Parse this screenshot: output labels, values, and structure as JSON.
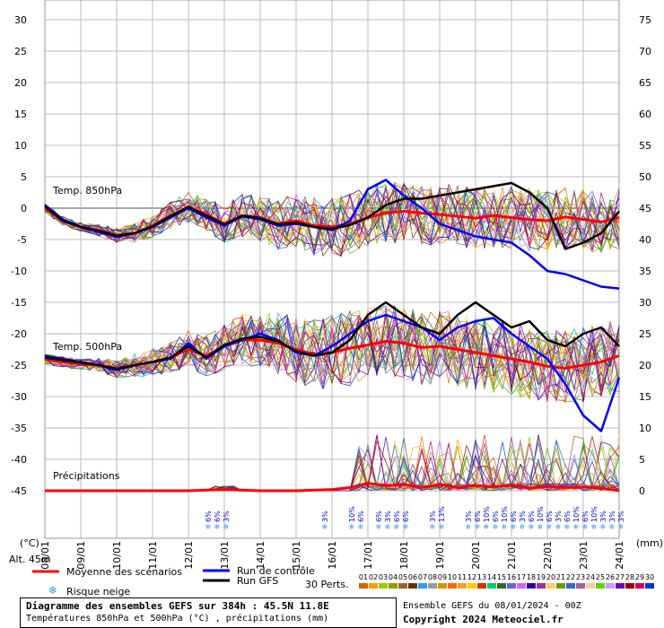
{
  "chart_data": {
    "type": "line",
    "title": "Diagramme des ensembles GEFS sur 384h : 45.5N 11.8E",
    "subtitle": "Températures 850hPa et 500hPa (°C) , précipitations (mm)",
    "left_axis": {
      "label": "(°C)",
      "ticks": [
        30,
        25,
        20,
        15,
        10,
        5,
        0,
        -5,
        -10,
        -15,
        -20,
        -25,
        -30,
        -35,
        -40,
        -45
      ],
      "range": [
        -45,
        30
      ]
    },
    "right_axis": {
      "label": "(mm)",
      "ticks": [
        75,
        70,
        65,
        60,
        55,
        50,
        45,
        40,
        35,
        30,
        25,
        20,
        15,
        10,
        5,
        0
      ],
      "range": [
        0,
        75
      ]
    },
    "x_ticks": [
      "08/01",
      "09/01",
      "10/01",
      "11/01",
      "12/01",
      "13/01",
      "14/01",
      "15/01",
      "16/01",
      "17/01",
      "18/01",
      "19/01",
      "20/01",
      "21/01",
      "22/01",
      "23/01",
      "24/01"
    ],
    "altitude_label": "Alt. 45m",
    "panel_labels": [
      "Temp. 850hPa",
      "Temp. 500hPa",
      "Précipitations"
    ],
    "legend": [
      {
        "name": "Moyenne des scénarios",
        "color": "#ff0000"
      },
      {
        "name": "Run de contrôle",
        "color": "#0000ff"
      },
      {
        "name": "Run GFS",
        "color": "#000000"
      },
      {
        "name": "Risque neige",
        "color": "#3399ff"
      }
    ],
    "members_label": "30 Perts.",
    "member_numbers": [
      "01",
      "02",
      "03",
      "04",
      "05",
      "06",
      "07",
      "08",
      "09",
      "10",
      "11",
      "12",
      "13",
      "14",
      "15",
      "16",
      "17",
      "18",
      "19",
      "20",
      "21",
      "22",
      "23",
      "24",
      "25",
      "26",
      "27",
      "28",
      "29",
      "30"
    ],
    "member_colors": [
      "#cc6600",
      "#ff9900",
      "#99cc00",
      "#999900",
      "#996633",
      "#663300",
      "#3399ff",
      "#999999",
      "#cc9900",
      "#ff6600",
      "#ff9933",
      "#ffcc00",
      "#cc3300",
      "#00cc66",
      "#336633",
      "#6666cc",
      "#cc66ff",
      "#330099",
      "#993399",
      "#ffcc66",
      "#669900",
      "#3366cc",
      "#996699",
      "#ffcc99",
      "#66cc00",
      "#cc99ff",
      "#6600cc",
      "#990000",
      "#cc0066",
      "#0033cc"
    ],
    "snow_risk": [
      {
        "x": 12.75,
        "pct": "6%"
      },
      {
        "x": 13.0,
        "pct": "6%"
      },
      {
        "x": 13.25,
        "pct": "3%"
      },
      {
        "x": 16.0,
        "pct": "3%"
      },
      {
        "x": 16.75,
        "pct": "10%"
      },
      {
        "x": 17.0,
        "pct": "6%"
      },
      {
        "x": 17.5,
        "pct": "6%"
      },
      {
        "x": 17.75,
        "pct": "3%"
      },
      {
        "x": 18.0,
        "pct": "6%"
      },
      {
        "x": 18.25,
        "pct": "6%"
      },
      {
        "x": 19.0,
        "pct": "3%"
      },
      {
        "x": 19.25,
        "pct": "13%"
      },
      {
        "x": 20.0,
        "pct": "3%"
      },
      {
        "x": 20.25,
        "pct": "6%"
      },
      {
        "x": 20.5,
        "pct": "10%"
      },
      {
        "x": 20.75,
        "pct": "6%"
      },
      {
        "x": 21.0,
        "pct": "10%"
      },
      {
        "x": 21.25,
        "pct": "6%"
      },
      {
        "x": 21.5,
        "pct": "3%"
      },
      {
        "x": 21.75,
        "pct": "6%"
      },
      {
        "x": 22.0,
        "pct": "10%"
      },
      {
        "x": 22.25,
        "pct": "6%"
      },
      {
        "x": 22.5,
        "pct": "3%"
      },
      {
        "x": 22.75,
        "pct": "6%"
      },
      {
        "x": 23.0,
        "pct": "10%"
      },
      {
        "x": 23.25,
        "pct": "6%"
      },
      {
        "x": 23.5,
        "pct": "10%"
      },
      {
        "x": 23.75,
        "pct": "3%"
      },
      {
        "x": 24.0,
        "pct": "3%"
      },
      {
        "x": 24.25,
        "pct": "3%"
      }
    ],
    "series": [
      {
        "name": "Moyenne des scénarios",
        "panel": "Temp. 850hPa",
        "color": "#ff0000",
        "x": [
          8,
          8.5,
          9,
          9.5,
          10,
          10.5,
          11,
          11.5,
          12,
          12.5,
          13,
          13.5,
          14,
          14.5,
          15,
          15.5,
          16,
          16.5,
          17,
          17.5,
          18,
          18.5,
          19,
          19.5,
          20,
          20.5,
          21,
          21.5,
          22,
          22.5,
          23,
          23.5,
          24
        ],
        "values": [
          0,
          -2,
          -3,
          -3.5,
          -4.3,
          -4,
          -2.8,
          -1.2,
          0.2,
          -1,
          -2.5,
          -1.2,
          -1.5,
          -2.5,
          -2,
          -2.8,
          -3,
          -2.5,
          -1.5,
          -0.8,
          -0.5,
          -0.8,
          -1,
          -1.3,
          -1.6,
          -1.2,
          -1.5,
          -1.8,
          -2,
          -1.4,
          -1.8,
          -2.2,
          -1.5
        ]
      },
      {
        "name": "Run de contrôle",
        "panel": "Temp. 850hPa",
        "color": "#0000ff",
        "x": [
          8,
          8.5,
          9,
          9.5,
          10,
          10.5,
          11,
          11.5,
          12,
          12.5,
          13,
          13.5,
          14,
          14.5,
          15,
          15.5,
          16,
          16.5,
          17,
          17.5,
          18,
          18.5,
          19,
          19.5,
          20,
          20.5,
          21,
          21.5,
          22,
          22.5,
          23,
          23.5,
          24
        ],
        "values": [
          0.5,
          -1.8,
          -3,
          -3.8,
          -4.6,
          -4,
          -3,
          -1.5,
          0,
          -1.5,
          -2.8,
          -1.3,
          -1.8,
          -2.8,
          -2.5,
          -3,
          -3.5,
          -2,
          3,
          4.5,
          2,
          0,
          -2.5,
          -3.5,
          -4.5,
          -5,
          -5.5,
          -7.5,
          -10,
          -10.5,
          -11.5,
          -12.5,
          -12.8
        ]
      },
      {
        "name": "Run GFS",
        "panel": "Temp. 850hPa",
        "color": "#000000",
        "x": [
          8,
          8.5,
          9,
          9.5,
          10,
          10.5,
          11,
          11.5,
          12,
          12.5,
          13,
          13.5,
          14,
          14.5,
          15,
          15.5,
          16,
          16.5,
          17,
          17.5,
          18,
          18.5,
          19,
          19.5,
          20,
          20.5,
          21,
          21.5,
          22,
          22.5,
          23,
          23.5,
          24
        ],
        "values": [
          0.3,
          -2,
          -3,
          -3.6,
          -4.4,
          -4,
          -2.9,
          -1.3,
          0.2,
          -1.2,
          -2.6,
          -1.2,
          -1.6,
          -2.6,
          -2.3,
          -3,
          -3.3,
          -2.7,
          -1.5,
          0.5,
          1.5,
          1.5,
          2,
          2.5,
          3,
          3.5,
          4,
          2.5,
          0,
          -6.5,
          -5.5,
          -4,
          -0.5
        ]
      },
      {
        "name": "Moyenne des scénarios",
        "panel": "Temp. 500hPa",
        "color": "#ff0000",
        "x": [
          8,
          8.5,
          9,
          9.5,
          10,
          10.5,
          11,
          11.5,
          12,
          12.5,
          13,
          13.5,
          14,
          14.5,
          15,
          15.5,
          16,
          16.5,
          17,
          17.5,
          18,
          18.5,
          19,
          19.5,
          20,
          20.5,
          21,
          21.5,
          22,
          22.5,
          23,
          23.5,
          24
        ],
        "values": [
          -24,
          -24.5,
          -24.8,
          -25,
          -25.5,
          -25,
          -24.5,
          -23.8,
          -22.5,
          -23.5,
          -22,
          -21,
          -21,
          -21.5,
          -22.5,
          -23.3,
          -23,
          -22.3,
          -21.8,
          -21.2,
          -21.5,
          -22.2,
          -22,
          -22.5,
          -23,
          -23.5,
          -24,
          -24.5,
          -25.2,
          -25.5,
          -25,
          -24.5,
          -23.5
        ]
      },
      {
        "name": "Run de contrôle",
        "panel": "Temp. 500hPa",
        "color": "#0000ff",
        "x": [
          8,
          8.5,
          9,
          9.5,
          10,
          10.5,
          11,
          11.5,
          12,
          12.5,
          13,
          13.5,
          14,
          14.5,
          15,
          15.5,
          16,
          16.5,
          17,
          17.5,
          18,
          18.5,
          19,
          19.5,
          20,
          20.5,
          21,
          21.5,
          22,
          22.5,
          23,
          23.5,
          24
        ],
        "values": [
          -23.5,
          -24,
          -24.5,
          -25,
          -25.8,
          -25,
          -24.5,
          -24,
          -21.5,
          -24,
          -22,
          -21,
          -20,
          -21,
          -23,
          -23.5,
          -22,
          -20,
          -18,
          -17,
          -18,
          -19,
          -21,
          -19,
          -18,
          -17.5,
          -20,
          -22,
          -24,
          -28,
          -33,
          -35.5,
          -27
        ]
      },
      {
        "name": "Run GFS",
        "panel": "Temp. 500hPa",
        "color": "#000000",
        "x": [
          8,
          8.5,
          9,
          9.5,
          10,
          10.5,
          11,
          11.5,
          12,
          12.5,
          13,
          13.5,
          14,
          14.5,
          15,
          15.5,
          16,
          16.5,
          17,
          17.5,
          18,
          18.5,
          19,
          19.5,
          20,
          20.5,
          21,
          21.5,
          22,
          22.5,
          23,
          23.5,
          24
        ],
        "values": [
          -23.8,
          -24.2,
          -24.6,
          -25,
          -25.6,
          -25,
          -24.5,
          -23.8,
          -22,
          -23.8,
          -21.8,
          -20.8,
          -20.5,
          -21.2,
          -22.8,
          -23.5,
          -23,
          -21,
          -17,
          -15,
          -17,
          -19,
          -20,
          -17,
          -15,
          -17,
          -19,
          -18,
          -21,
          -22,
          -20,
          -19,
          -22
        ]
      },
      {
        "name": "Moyenne des scénarios",
        "panel": "Précipitations",
        "color": "#ff0000",
        "x": [
          8,
          9,
          10,
          11,
          12,
          13,
          14,
          15,
          16,
          16.5,
          17,
          17.5,
          18,
          18.5,
          19,
          19.5,
          20,
          20.5,
          21,
          21.5,
          22,
          22.5,
          23,
          23.5,
          24
        ],
        "values": [
          0,
          0,
          0,
          0,
          0,
          0.2,
          0,
          0,
          0.2,
          0.5,
          1.2,
          0.8,
          1,
          0.5,
          1,
          0.5,
          0.8,
          0.6,
          0.9,
          0.4,
          0.7,
          0.5,
          0.6,
          0.4,
          0
        ]
      }
    ]
  },
  "footer": {
    "box_title": "Diagramme des ensembles GEFS sur 384h : 45.5N 11.8E",
    "box_subtitle": "Températures 850hPa et 500hPa (°C) , précipitations (mm)",
    "run_info": "Ensemble GEFS du 08/01/2024 - 00Z",
    "copyright": "Copyright 2024 Meteociel.fr"
  }
}
